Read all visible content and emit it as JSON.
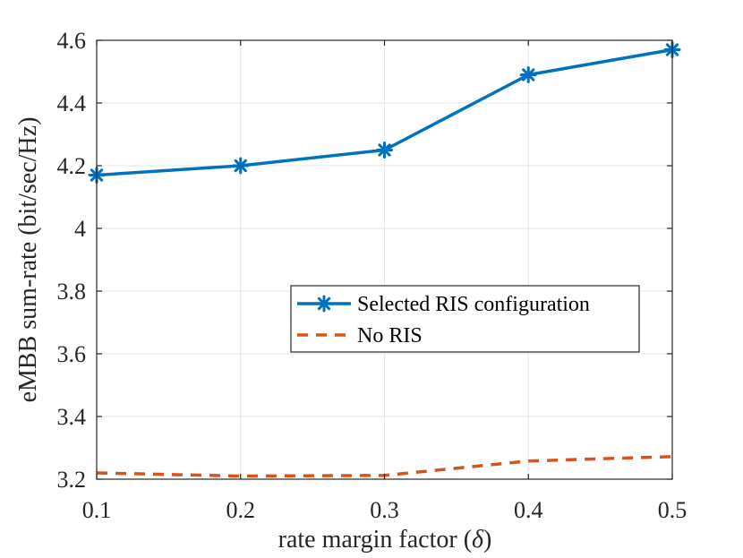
{
  "chart_data": {
    "type": "line",
    "xlabel_main": "rate margin factor (",
    "xlabel_symbol": "δ",
    "xlabel_close": ")",
    "ylabel": "eMBB sum-rate (bit/sec/Hz)",
    "xlim": [
      0.1,
      0.5
    ],
    "ylim": [
      3.2,
      4.6
    ],
    "grid": true,
    "legend_position": "center-right",
    "x_ticks": [
      "0.1",
      "0.2",
      "0.3",
      "0.4",
      "0.5"
    ],
    "y_ticks": [
      "3.2",
      "3.4",
      "3.6",
      "3.8",
      "4",
      "4.2",
      "4.4",
      "4.6"
    ],
    "x": [
      0.1,
      0.2,
      0.3,
      0.4,
      0.5
    ],
    "series": [
      {
        "name": "Selected RIS configuration",
        "values": [
          4.17,
          4.2,
          4.25,
          4.49,
          4.57
        ],
        "color": "#0072BD",
        "style": "solid",
        "marker": "asterisk"
      },
      {
        "name": "No RIS",
        "values": [
          3.22,
          3.21,
          3.212,
          3.258,
          3.272
        ],
        "color": "#D95319",
        "style": "dashed",
        "marker": "none"
      }
    ]
  }
}
